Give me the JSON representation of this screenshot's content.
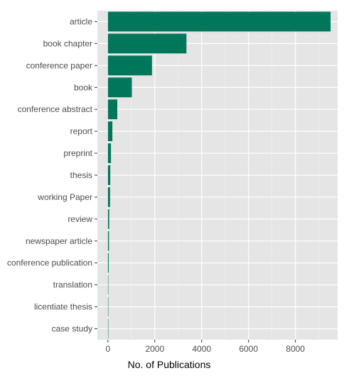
{
  "chart_data": {
    "type": "bar",
    "orientation": "horizontal",
    "categories": [
      "article",
      "book chapter",
      "conference paper",
      "book",
      "conference abstract",
      "report",
      "preprint",
      "thesis",
      "working Paper",
      "review",
      "newspaper article",
      "conference publication",
      "translation",
      "licentiate thesis",
      "case study"
    ],
    "values": [
      9500,
      3350,
      1880,
      1020,
      400,
      190,
      130,
      100,
      90,
      55,
      45,
      35,
      12,
      8,
      5
    ],
    "xlabel": "No. of Publications",
    "ylabel": "",
    "xlim": [
      -450,
      9800
    ],
    "xticks": [
      0,
      2000,
      4000,
      6000,
      8000
    ],
    "grid": true,
    "legend": "none",
    "colors": {
      "bar": "#00775a",
      "panel": "#e5e5e5",
      "grid_major": "#ffffff",
      "grid_minor": "#f2f2f2",
      "tick_text": "#4d4d4d",
      "title_text": "#000000"
    }
  }
}
